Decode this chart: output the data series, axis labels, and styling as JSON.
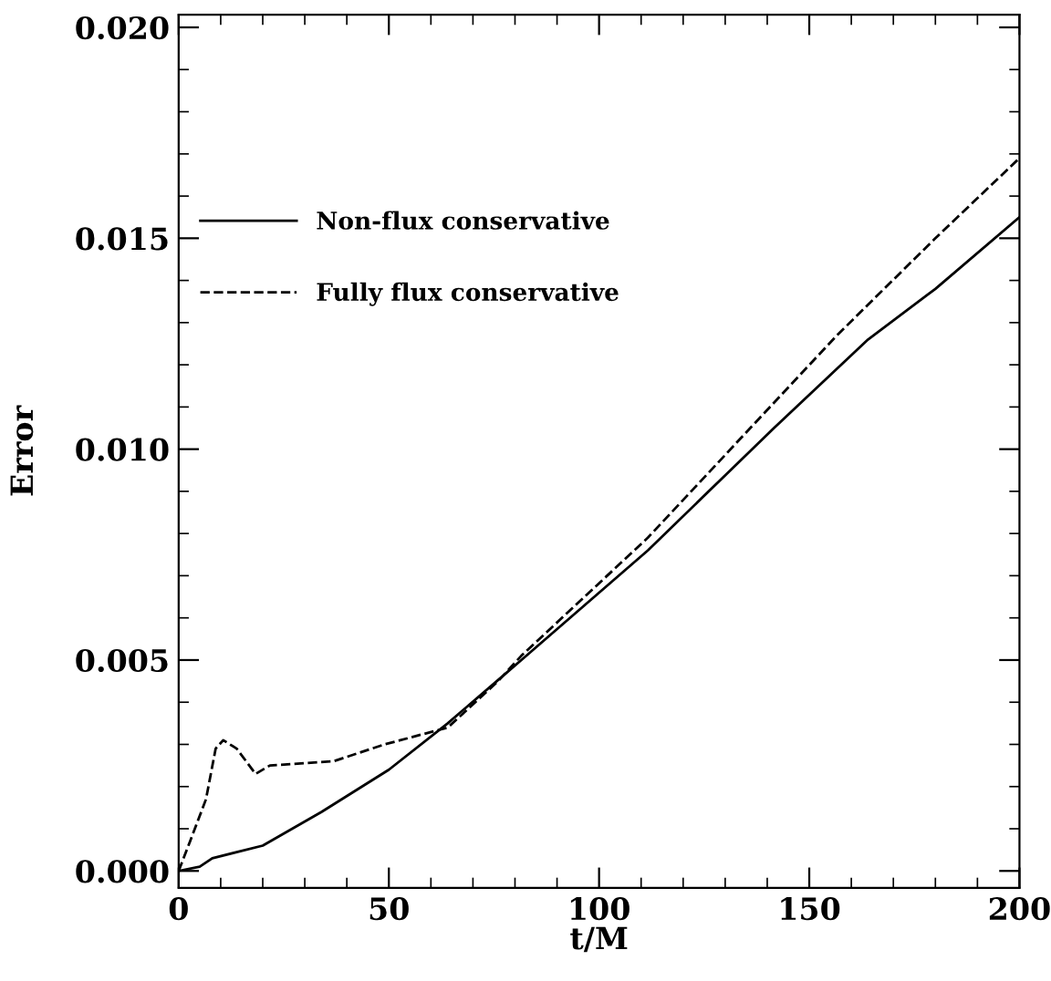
{
  "chart_data": {
    "type": "line",
    "xlabel": "t/M",
    "ylabel": "Error",
    "series": [
      {
        "name": "Non-flux conservative",
        "color": "#000000",
        "line_style": "solid",
        "x": [
          0,
          5,
          8,
          20,
          34,
          50,
          64,
          78,
          81.5,
          111.6,
          141.6,
          164,
          180,
          200
        ],
        "values": [
          0.0,
          0.0001,
          0.0003,
          0.0006,
          0.0014,
          0.0024,
          0.0035,
          0.0047,
          0.005,
          0.0076,
          0.0105,
          0.0126,
          0.0138,
          0.0155
        ]
      },
      {
        "name": "Fully flux conservative",
        "color": "#000000",
        "line_style": "dashed",
        "x": [
          0,
          2.7,
          6.5,
          8.8,
          10.6,
          13.8,
          18.3,
          21.7,
          36.8,
          49,
          64,
          76,
          81.5,
          111.6,
          141.6,
          156.6,
          180,
          200
        ],
        "values": [
          0.0,
          0.0007,
          0.0017,
          0.0029,
          0.0031,
          0.0029,
          0.0023,
          0.0025,
          0.0026,
          0.003,
          0.0034,
          0.0045,
          0.0051,
          0.0079,
          0.0111,
          0.0127,
          0.015,
          0.0169
        ]
      }
    ],
    "xlim": [
      0,
      200
    ],
    "xticks": [
      0,
      50,
      100,
      150,
      200
    ],
    "ylim": [
      -0.0004,
      0.0203
    ],
    "yticks": [
      {
        "value": 0,
        "label": "0.000"
      },
      {
        "value": 0.005,
        "label": "0.005"
      },
      {
        "value": 0.01,
        "label": "0.010"
      },
      {
        "value": 0.015,
        "label": "0.015"
      },
      {
        "value": 0.02,
        "label": "0.020"
      }
    ],
    "grid": false,
    "legend": "top left",
    "marker": "none"
  }
}
